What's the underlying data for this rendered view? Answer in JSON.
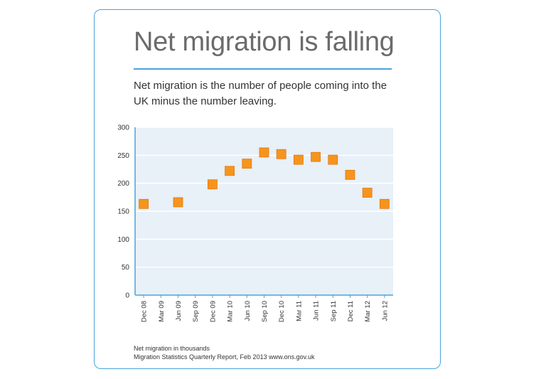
{
  "title": "Net migration is falling",
  "subtitle": "Net migration is the number of people coming into the UK minus the number leaving.",
  "footer": {
    "note": "Net migration in thousands",
    "source": "Migration Statistics Quarterly Report, Feb 2013 www.ons.gov.uk"
  },
  "colors": {
    "frame": "#4aa3d8",
    "plot_background": "#e8f0f8",
    "marker": "#f7941d",
    "marker_edge": "#e07a10"
  },
  "chart_data": {
    "type": "scatter",
    "categories": [
      "Dec 08",
      "Mar 09",
      "Jun 09",
      "Sep 09",
      "Dec 09",
      "Mar 10",
      "Jun 10",
      "Sep 10",
      "Dec 10",
      "Mar 11",
      "Jun 11",
      "Sep 11",
      "Dec 11",
      "Mar 12",
      "Jun 12"
    ],
    "values": [
      163,
      null,
      166,
      null,
      198,
      222,
      235,
      255,
      252,
      242,
      247,
      242,
      215,
      183,
      163
    ],
    "ylim": [
      0,
      300
    ],
    "yticks": [
      0,
      50,
      100,
      150,
      200,
      250,
      300
    ],
    "grid": true
  }
}
